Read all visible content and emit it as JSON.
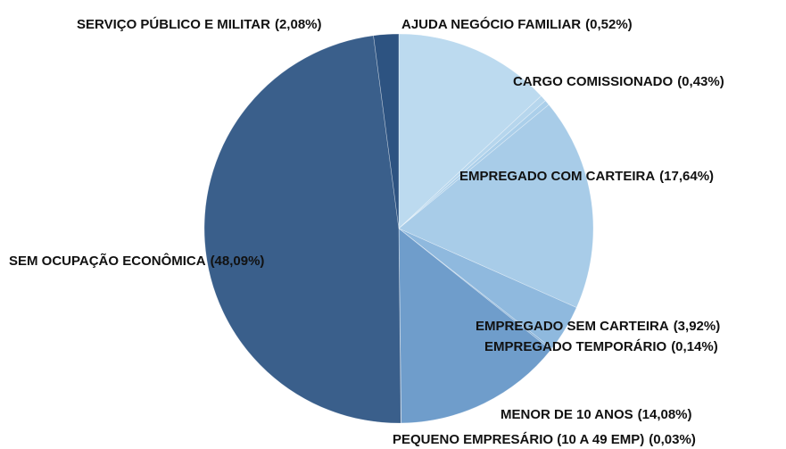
{
  "chart_data": {
    "type": "pie",
    "categories": [
      null,
      "AJUDA NEGÓCIO FAMILIAR",
      "CARGO COMISSIONADO",
      "EMPREGADO COM CARTEIRA",
      "EMPREGADO SEM CARTEIRA",
      "EMPREGADO TEMPORÁRIO",
      "MENOR DE 10 ANOS",
      "PEQUENO EMPRESÁRIO (10 A 49 EMP)",
      "SEM OCUPAÇÃO ECONÔMICA",
      "SERVIÇO PÚBLICO E MILITAR"
    ],
    "values": [
      13.07,
      0.52,
      0.43,
      17.64,
      3.92,
      0.14,
      14.08,
      0.03,
      48.09,
      2.08
    ],
    "value_labels": [
      null,
      "(0,52%)",
      "(0,43%)",
      "(17,64%)",
      "(3,92%)",
      "(0,14%)",
      "(14,08%)",
      "(0,03%)",
      "(48,09%)",
      "(2,08%)"
    ],
    "colors": [
      "#bcdaef",
      "#b6d6ed",
      "#abcfea",
      "#a8cce8",
      "#8fb9de",
      "#80acd4",
      "#6f9dcb",
      "#4f7bab",
      "#3a5f8b",
      "#2d5381"
    ]
  }
}
